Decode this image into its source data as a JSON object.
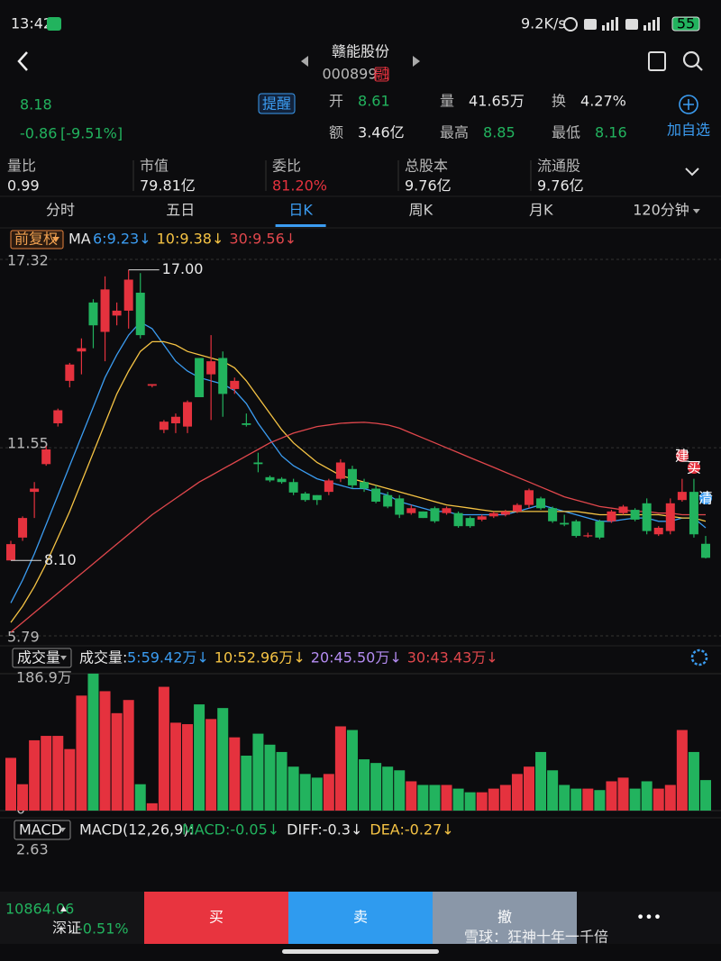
{
  "status_bar": {
    "time": "13:42",
    "speed": "9.2K/s",
    "battery": "55"
  },
  "header": {
    "title": "赣能股份",
    "code": "000899",
    "badge": "融"
  },
  "quote": {
    "price": "8.18",
    "change": "-0.86",
    "change_pct": "[-9.51%]",
    "alert": "提醒",
    "watchlist": "加自选",
    "fields": [
      {
        "label": "开",
        "value": "8.61",
        "color": "#22b35e"
      },
      {
        "label": "量",
        "value": "41.65万",
        "color": "#e8e8e8"
      },
      {
        "label": "换",
        "value": "4.27%",
        "color": "#e8e8e8"
      },
      {
        "label": "额",
        "value": "3.46亿",
        "color": "#e8e8e8"
      },
      {
        "label": "最高",
        "value": "8.85",
        "color": "#22b35e"
      },
      {
        "label": "最低",
        "value": "8.16",
        "color": "#22b35e"
      }
    ]
  },
  "stats": [
    {
      "label": "量比",
      "value": "0.99",
      "color": "#e8e8e8"
    },
    {
      "label": "市值",
      "value": "79.81亿",
      "color": "#e8e8e8"
    },
    {
      "label": "委比",
      "value": "81.20%",
      "color": "#e5323e"
    },
    {
      "label": "总股本",
      "value": "9.76亿",
      "color": "#e8e8e8"
    },
    {
      "label": "流通股",
      "value": "9.76亿",
      "color": "#e8e8e8"
    }
  ],
  "tabs": [
    "分时",
    "五日",
    "日K",
    "周K",
    "月K",
    "120分钟"
  ],
  "active_tab": 2,
  "signals": [
    "建",
    "买",
    "清"
  ],
  "chart_data": [
    {
      "type": "candlestick",
      "adjust": "前复权",
      "ma_title": "MA",
      "up_color": "#e5323e",
      "down_color": "#22b35e",
      "ylim": [
        5.79,
        17.32
      ],
      "yticks": [
        17.32,
        11.55,
        5.79
      ],
      "grid": true,
      "annotations": [
        {
          "value": 17,
          "label": "17.00",
          "field": "high"
        },
        {
          "value": 8.1,
          "label": "8.10",
          "field": "low"
        }
      ],
      "open": [
        8.1,
        8.8,
        10.2,
        11.05,
        12.3,
        13.6,
        14.5,
        16.0,
        15.1,
        15.6,
        15.75,
        16.3,
        13.45,
        12.1,
        12.3,
        12.2,
        14.3,
        13.8,
        14.3,
        13.35,
        12.3,
        11.1,
        10.65,
        10.6,
        10.5,
        10.15,
        10.1,
        10.2,
        10.6,
        10.9,
        10.5,
        10.3,
        10.1,
        10.0,
        9.55,
        9.6,
        9.7,
        9.55,
        9.55,
        9.4,
        9.35,
        9.45,
        9.5,
        9.6,
        9.8,
        10.0,
        9.7,
        9.25,
        9.3,
        8.85,
        9.3,
        9.3,
        9.55,
        9.65,
        9.85,
        8.9,
        9.0,
        9.95,
        10.2,
        8.61
      ],
      "high": [
        8.7,
        9.45,
        10.5,
        11.6,
        12.75,
        14.15,
        14.9,
        16.1,
        16.8,
        16.0,
        17.0,
        16.9,
        13.5,
        12.4,
        12.6,
        13.0,
        14.3,
        15.0,
        14.5,
        13.7,
        12.6,
        11.4,
        10.7,
        10.65,
        10.6,
        10.2,
        10.1,
        10.6,
        11.2,
        11.0,
        10.6,
        10.4,
        10.2,
        10.1,
        9.8,
        9.6,
        9.75,
        9.75,
        9.6,
        9.45,
        9.5,
        9.6,
        9.65,
        9.85,
        10.3,
        10.05,
        9.75,
        9.5,
        9.35,
        8.95,
        9.35,
        9.65,
        9.8,
        9.7,
        10.0,
        9.15,
        10.0,
        10.6,
        10.6,
        8.85
      ],
      "low": [
        8.1,
        8.7,
        9.4,
        11.0,
        12.2,
        13.4,
        13.8,
        14.6,
        14.2,
        15.3,
        15.2,
        14.9,
        13.4,
        12.0,
        12.0,
        12.0,
        13.1,
        12.4,
        12.5,
        13.2,
        12.2,
        10.8,
        10.5,
        10.45,
        10.1,
        9.9,
        9.8,
        10.1,
        10.5,
        10.3,
        10.2,
        9.85,
        9.7,
        9.4,
        9.5,
        9.4,
        9.25,
        9.5,
        9.1,
        9.1,
        9.3,
        9.4,
        9.45,
        9.55,
        9.7,
        9.65,
        9.25,
        9.15,
        8.8,
        8.8,
        8.75,
        9.25,
        9.5,
        9.3,
        8.9,
        8.85,
        8.9,
        9.9,
        8.8,
        8.16
      ],
      "close": [
        8.6,
        9.4,
        10.3,
        11.5,
        12.7,
        14.1,
        14.6,
        15.3,
        16.4,
        15.75,
        16.7,
        15.0,
        13.5,
        12.35,
        12.5,
        12.95,
        13.1,
        14.2,
        13.2,
        13.6,
        12.25,
        11.05,
        10.55,
        10.5,
        10.18,
        9.95,
        9.95,
        10.55,
        11.1,
        10.4,
        10.3,
        9.9,
        9.75,
        9.5,
        9.7,
        9.4,
        9.3,
        9.7,
        9.15,
        9.15,
        9.45,
        9.55,
        9.6,
        9.8,
        10.25,
        9.7,
        9.3,
        9.2,
        8.85,
        8.87,
        8.8,
        9.6,
        9.75,
        9.35,
        9.0,
        9.1,
        9.85,
        10.2,
        8.9,
        8.18
      ],
      "ma": [
        {
          "label": "6:9.23↓",
          "color": "#3b9cf1",
          "values": [
            6.8,
            7.5,
            8.3,
            9.2,
            10.1,
            11.0,
            11.9,
            12.8,
            13.7,
            14.4,
            15.0,
            15.4,
            15.2,
            14.7,
            14.2,
            13.9,
            13.7,
            13.6,
            13.5,
            13.3,
            12.9,
            12.3,
            11.8,
            11.3,
            11.0,
            10.8,
            10.6,
            10.5,
            10.4,
            10.3,
            10.3,
            10.2,
            10.1,
            9.9,
            9.8,
            9.7,
            9.6,
            9.6,
            9.5,
            9.5,
            9.5,
            9.5,
            9.5,
            9.6,
            9.7,
            9.8,
            9.7,
            9.6,
            9.5,
            9.4,
            9.3,
            9.3,
            9.35,
            9.4,
            9.4,
            9.3,
            9.3,
            9.4,
            9.4,
            9.1
          ]
        },
        {
          "label": "10:9.38↓",
          "color": "#f5c344",
          "values": [
            6.2,
            6.7,
            7.3,
            8.0,
            8.8,
            9.6,
            10.5,
            11.4,
            12.3,
            13.2,
            13.9,
            14.5,
            14.8,
            14.8,
            14.7,
            14.5,
            14.4,
            14.3,
            14.2,
            14.0,
            13.6,
            13.1,
            12.6,
            12.1,
            11.7,
            11.4,
            11.1,
            10.9,
            10.7,
            10.6,
            10.5,
            10.4,
            10.3,
            10.2,
            10.1,
            10.0,
            9.9,
            9.8,
            9.75,
            9.7,
            9.65,
            9.6,
            9.6,
            9.6,
            9.6,
            9.6,
            9.6,
            9.6,
            9.6,
            9.55,
            9.5,
            9.5,
            9.5,
            9.5,
            9.5,
            9.5,
            9.45,
            9.4,
            9.4,
            9.3
          ]
        },
        {
          "label": "30:9.56↓",
          "color": "#e0474c",
          "values": [
            5.9,
            6.2,
            6.5,
            6.8,
            7.1,
            7.4,
            7.7,
            8.0,
            8.3,
            8.6,
            8.9,
            9.2,
            9.5,
            9.75,
            10.0,
            10.25,
            10.5,
            10.7,
            10.9,
            11.1,
            11.3,
            11.5,
            11.7,
            11.85,
            12.0,
            12.1,
            12.2,
            12.25,
            12.3,
            12.32,
            12.33,
            12.3,
            12.25,
            12.15,
            12.0,
            11.85,
            11.7,
            11.55,
            11.4,
            11.25,
            11.1,
            10.95,
            10.8,
            10.65,
            10.5,
            10.35,
            10.2,
            10.05,
            9.95,
            9.85,
            9.75,
            9.7,
            9.65,
            9.6,
            9.6,
            9.55,
            9.55,
            9.5,
            9.5,
            9.5
          ]
        }
      ]
    },
    {
      "type": "bar",
      "title": "成交量",
      "legend_prefix": "成交量:",
      "ylim": [
        0,
        186.9
      ],
      "yticks": [
        {
          "value": 186.9,
          "label": "186.9万"
        },
        0
      ],
      "values": [
        72,
        36,
        96,
        102,
        102,
        84,
        157,
        187,
        163,
        133,
        151,
        36,
        10,
        169,
        120,
        118,
        145,
        125,
        140,
        100,
        75,
        105,
        90,
        80,
        60,
        50,
        45,
        50,
        115,
        110,
        70,
        65,
        60,
        55,
        40,
        35,
        35,
        35,
        30,
        25,
        25,
        30,
        35,
        50,
        60,
        80,
        55,
        35,
        30,
        30,
        28,
        40,
        45,
        30,
        40,
        30,
        35,
        110,
        80,
        41.65
      ],
      "ma": [
        {
          "label": "5:59.42万↓",
          "color": "#3b9cf1"
        },
        {
          "label": "10:52.96万↓",
          "color": "#f5c344"
        },
        {
          "label": "20:45.50万↓",
          "color": "#b48cf2"
        },
        {
          "label": "30:43.43万↓",
          "color": "#e0474c"
        }
      ]
    },
    {
      "type": "macd",
      "title": "MACD",
      "params": "MACD(12,26,9):",
      "yticks": [
        2.63
      ],
      "legend": [
        {
          "label": "MACD:-0.05↓",
          "color": "#22b35e"
        },
        {
          "label": "DIFF:-0.3↓",
          "color": "#e8e8e8"
        },
        {
          "label": "DEA:-0.27↓",
          "color": "#f5c344"
        }
      ]
    }
  ],
  "bottom": {
    "index_value": "10864.06",
    "index_name": "深证",
    "index_change": "-0.51%",
    "buttons": [
      {
        "label": "买",
        "color": "#e8343f"
      },
      {
        "label": "卖",
        "color": "#2f9bef"
      },
      {
        "label": "撤",
        "color": "#8a97a8"
      },
      {
        "label": "•••",
        "color": "#111114"
      }
    ],
    "watermark": "雪球：狂神十年一千倍"
  }
}
